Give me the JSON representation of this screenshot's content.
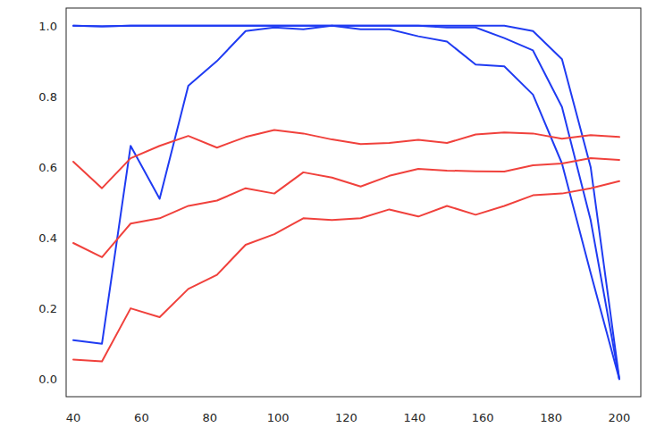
{
  "chart_data": {
    "type": "line",
    "x": [
      40,
      48.4,
      56.8,
      65.3,
      73.7,
      82.1,
      90.5,
      98.9,
      107.4,
      115.8,
      124.2,
      132.6,
      141.1,
      149.5,
      157.9,
      166.3,
      174.7,
      183.2,
      191.6,
      200
    ],
    "series": [
      {
        "color": "#1f3bf2",
        "values": [
          1.0,
          0.998,
          1.0,
          1.0,
          1.0,
          1.0,
          1.0,
          1.0,
          1.0,
          1.0,
          1.0,
          1.0,
          1.0,
          1.0,
          1.0,
          1.0,
          0.985,
          0.905,
          0.6,
          0.0
        ]
      },
      {
        "color": "#1f3bf2",
        "values": [
          1.0,
          0.998,
          1.0,
          1.0,
          1.0,
          1.0,
          1.0,
          1.0,
          1.0,
          1.0,
          1.0,
          1.0,
          1.0,
          0.995,
          0.995,
          0.965,
          0.93,
          0.77,
          0.45,
          0.0
        ]
      },
      {
        "color": "#1f3bf2",
        "values": [
          0.11,
          0.1,
          0.66,
          0.51,
          0.83,
          0.9,
          0.985,
          0.995,
          0.99,
          1.0,
          0.99,
          0.99,
          0.97,
          0.955,
          0.89,
          0.885,
          0.805,
          0.61,
          0.3,
          0.0
        ]
      },
      {
        "color": "#f0413c",
        "values": [
          0.615,
          0.54,
          0.625,
          0.66,
          0.688,
          0.655,
          0.685,
          0.705,
          0.695,
          0.678,
          0.665,
          0.668,
          0.677,
          0.668,
          0.692,
          0.698,
          0.695,
          0.68,
          0.69,
          0.685
        ]
      },
      {
        "color": "#f0413c",
        "values": [
          0.385,
          0.345,
          0.44,
          0.455,
          0.49,
          0.505,
          0.54,
          0.525,
          0.585,
          0.57,
          0.545,
          0.575,
          0.595,
          0.59,
          0.588,
          0.587,
          0.605,
          0.61,
          0.625,
          0.62
        ]
      },
      {
        "color": "#f0413c",
        "values": [
          0.055,
          0.05,
          0.2,
          0.175,
          0.255,
          0.295,
          0.38,
          0.41,
          0.455,
          0.45,
          0.455,
          0.48,
          0.46,
          0.49,
          0.465,
          0.49,
          0.52,
          0.525,
          0.54,
          0.56
        ]
      }
    ],
    "xlim": [
      37.9,
      206.3
    ],
    "xticks": [
      40,
      60,
      80,
      100,
      120,
      140,
      160,
      180,
      200
    ],
    "ylim": [
      -0.05,
      1.05
    ],
    "yticks": [
      {
        "value": 0,
        "label": "0.0"
      },
      {
        "value": 0.2,
        "label": "0.2"
      },
      {
        "value": 0.4,
        "label": "0.4"
      },
      {
        "value": 0.6,
        "label": "0.6"
      },
      {
        "value": 0.8,
        "label": "0.8"
      },
      {
        "value": 1.0,
        "label": "1.0"
      }
    ],
    "grid": false
  }
}
